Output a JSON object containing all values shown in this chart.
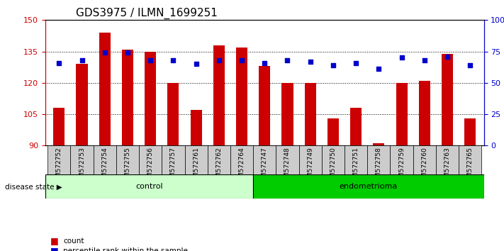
{
  "title": "GDS3975 / ILMN_1699251",
  "samples": [
    "GSM572752",
    "GSM572753",
    "GSM572754",
    "GSM572755",
    "GSM572756",
    "GSM572757",
    "GSM572761",
    "GSM572762",
    "GSM572764",
    "GSM572747",
    "GSM572748",
    "GSM572749",
    "GSM572750",
    "GSM572751",
    "GSM572758",
    "GSM572759",
    "GSM572760",
    "GSM572763",
    "GSM572765"
  ],
  "counts": [
    108,
    129,
    144,
    136,
    135,
    120,
    107,
    138,
    137,
    128,
    120,
    120,
    103,
    108,
    91,
    120,
    121,
    134,
    103
  ],
  "percentile_ranks": [
    66,
    68,
    74,
    74,
    68,
    68,
    65,
    68,
    68,
    66,
    68,
    67,
    64,
    66,
    61,
    70,
    68,
    71,
    64
  ],
  "y_min": 90,
  "y_max": 150,
  "y_ticks_left": [
    90,
    105,
    120,
    135,
    150
  ],
  "y_ticks_right": [
    0,
    25,
    50,
    75,
    100
  ],
  "bar_color": "#cc0000",
  "dot_color": "#0000cc",
  "control_count": 9,
  "endometrioma_count": 10,
  "control_label": "control",
  "endometrioma_label": "endometrioma",
  "control_bg": "#ccffcc",
  "endometrioma_bg": "#00cc00",
  "xticklabel_bg": "#cccccc",
  "disease_state_label": "disease state",
  "legend_count_label": "count",
  "legend_percentile_label": "percentile rank within the sample",
  "title_fontsize": 11,
  "tick_fontsize": 8,
  "label_fontsize": 8
}
